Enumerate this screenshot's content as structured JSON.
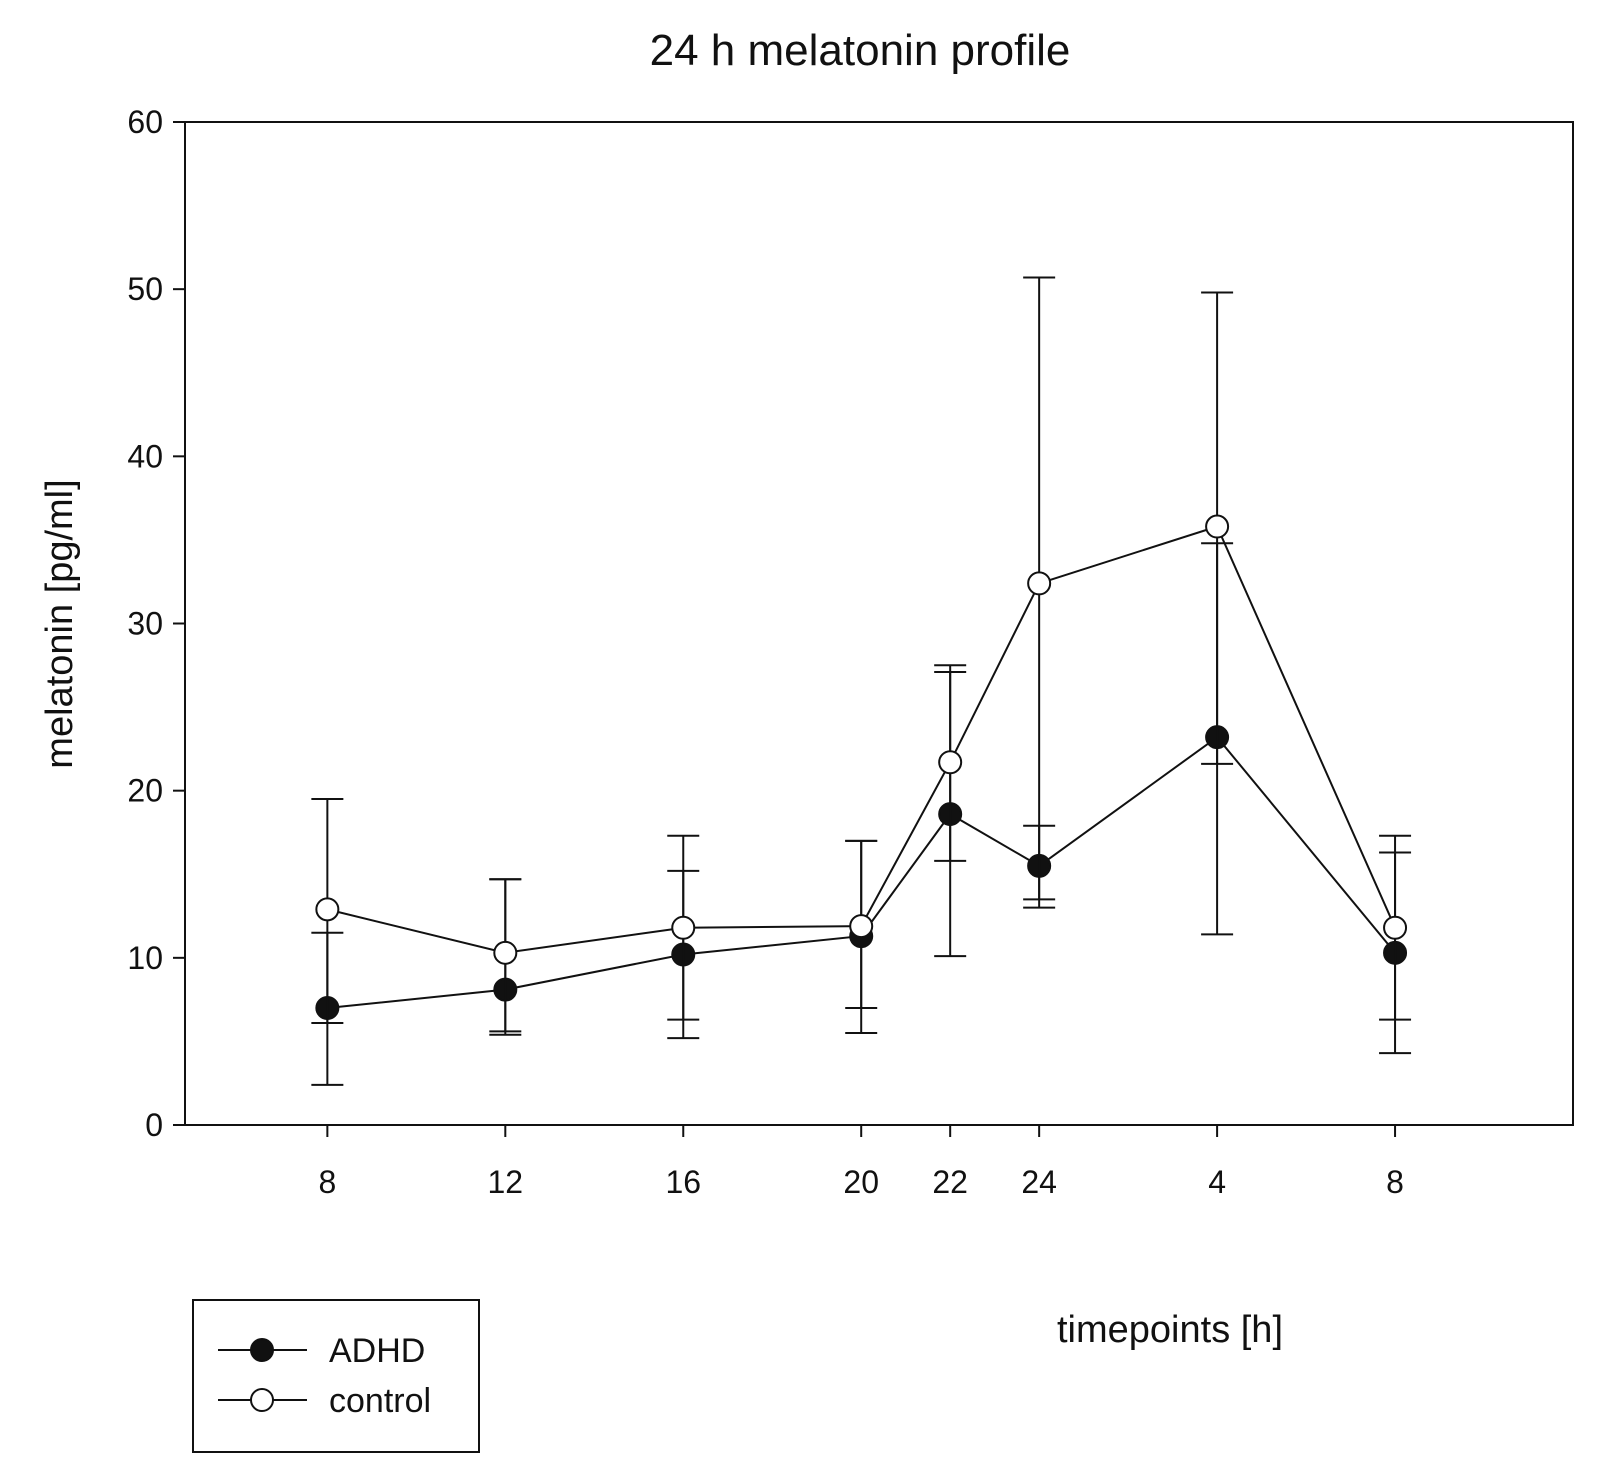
{
  "chart_data": {
    "type": "line",
    "title": "24 h melatonin profile",
    "xlabel": "timepoints [h]",
    "ylabel": "melatonin [pg/ml]",
    "ylim": [
      0,
      60
    ],
    "yticks": [
      0,
      10,
      20,
      30,
      40,
      50,
      60
    ],
    "x": [
      8,
      12,
      16,
      20,
      22,
      24,
      28,
      32
    ],
    "xlim": [
      4.8,
      36.0
    ],
    "tick_labels": [
      "8",
      "12",
      "16",
      "20",
      "22",
      "24",
      "4",
      "8"
    ],
    "grid": false,
    "legend_position": "bottom-left",
    "series": [
      {
        "name": "ADHD",
        "marker": "filled-circle",
        "values": [
          7.0,
          8.1,
          10.2,
          11.3,
          18.6,
          15.5,
          23.2,
          10.3
        ],
        "err_low": [
          2.4,
          5.6,
          5.2,
          5.5,
          10.1,
          13.0,
          11.4,
          4.3
        ],
        "err_high": [
          11.5,
          14.7,
          15.2,
          17.0,
          27.1,
          17.9,
          34.8,
          16.3
        ]
      },
      {
        "name": "control",
        "marker": "open-circle",
        "values": [
          12.9,
          10.3,
          11.8,
          11.9,
          21.7,
          32.4,
          35.8,
          11.8
        ],
        "err_low": [
          6.1,
          5.4,
          6.3,
          7.0,
          15.8,
          13.5,
          21.6,
          6.3
        ],
        "err_high": [
          19.5,
          14.7,
          17.3,
          17.0,
          27.5,
          50.7,
          49.8,
          17.3
        ]
      }
    ]
  }
}
